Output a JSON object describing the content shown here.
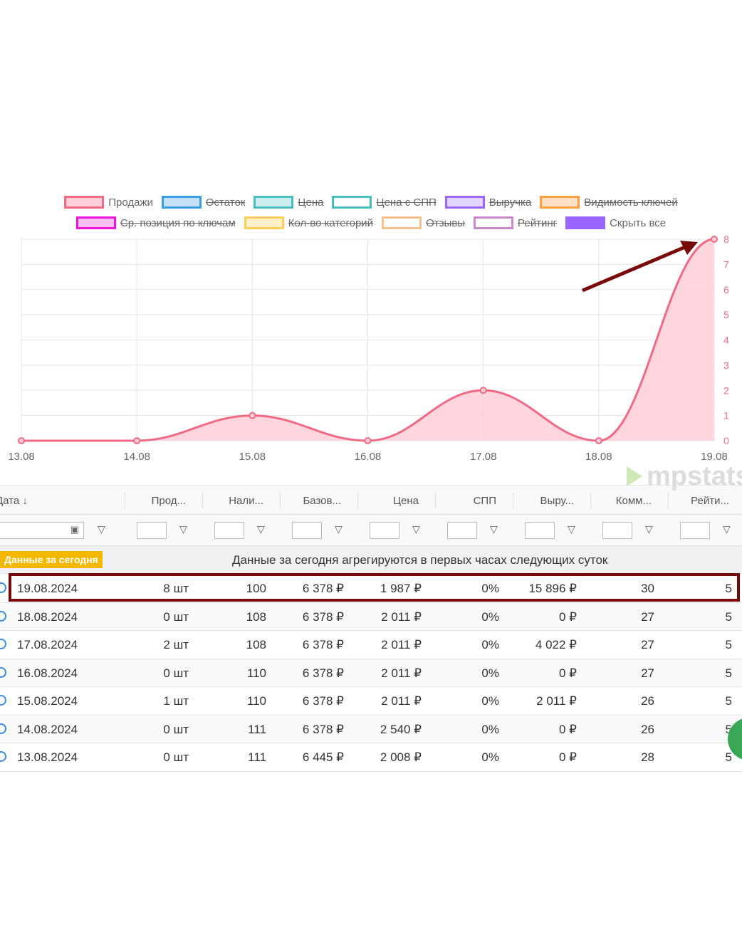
{
  "legend": [
    {
      "label": "Продажи",
      "color": "#f06a85",
      "fill": "#ffd0da",
      "active": true
    },
    {
      "label": "Остаток",
      "color": "#3a9ee6",
      "fill": "#c5e1f8",
      "active": false
    },
    {
      "label": "Цена",
      "color": "#4bbfbf",
      "fill": "#cdeeee",
      "active": false
    },
    {
      "label": "Цена с СПП",
      "color": "#4bbfbf",
      "fill": "#ffffff",
      "active": false
    },
    {
      "label": "Выручка",
      "color": "#9966ff",
      "fill": "#e1d5ff",
      "active": false
    },
    {
      "label": "Видимость ключей",
      "color": "#ff9f40",
      "fill": "#ffe0c4",
      "active": false
    },
    {
      "label": "Ср. позиция по ключам",
      "color": "#ee11dd",
      "fill": "#fcc0f5",
      "active": false
    },
    {
      "label": "Кол-во категорий",
      "color": "#ffcd56",
      "fill": "#fff0cc",
      "active": false
    },
    {
      "label": "Отзывы",
      "color": "#f8c08a",
      "fill": "#ffffff",
      "active": false
    },
    {
      "label": "Рейтинг",
      "color": "#cc88cc",
      "fill": "#ffffff",
      "active": false
    },
    {
      "label": "Скрыть все",
      "color": "#9966ff",
      "fill": "#9966ff",
      "active": true
    }
  ],
  "chart_data": {
    "type": "area",
    "x": [
      "13.08",
      "14.08",
      "15.08",
      "16.08",
      "17.08",
      "18.08",
      "19.08"
    ],
    "series": [
      {
        "name": "Продажи",
        "values": [
          0,
          0,
          1,
          0,
          2,
          0,
          8
        ]
      }
    ],
    "ylim": [
      0,
      8
    ],
    "yticks": [
      "0",
      "1",
      "2",
      "3",
      "4",
      "5",
      "6",
      "7",
      "8"
    ],
    "grid": true,
    "color": "#f06a85"
  },
  "watermark": "mpstats",
  "table": {
    "headers": [
      "Дата ↓",
      "Прод...",
      "Нали...",
      "Базов...",
      "Цена",
      "СПП",
      "Выру...",
      "Комм...",
      "Рейти..."
    ],
    "today_badge": "Данные за сегодня",
    "today_note": "Данные за сегодня агрегируются в первых часах следующих суток",
    "rows": [
      [
        "19.08.2024",
        "8 шт",
        "100",
        "6 378 ₽",
        "1 987 ₽",
        "0%",
        "15 896 ₽",
        "30",
        "5"
      ],
      [
        "18.08.2024",
        "0 шт",
        "108",
        "6 378 ₽",
        "2 011 ₽",
        "0%",
        "0 ₽",
        "27",
        "5"
      ],
      [
        "17.08.2024",
        "2 шт",
        "108",
        "6 378 ₽",
        "2 011 ₽",
        "0%",
        "4 022 ₽",
        "27",
        "5"
      ],
      [
        "16.08.2024",
        "0 шт",
        "110",
        "6 378 ₽",
        "2 011 ₽",
        "0%",
        "0 ₽",
        "27",
        "5"
      ],
      [
        "15.08.2024",
        "1 шт",
        "110",
        "6 378 ₽",
        "2 011 ₽",
        "0%",
        "2 011 ₽",
        "26",
        "5"
      ],
      [
        "14.08.2024",
        "0 шт",
        "111",
        "6 378 ₽",
        "2 540 ₽",
        "0%",
        "0 ₽",
        "26",
        "5"
      ],
      [
        "13.08.2024",
        "0 шт",
        "111",
        "6 445 ₽",
        "2 008 ₽",
        "0%",
        "0 ₽",
        "28",
        "5"
      ]
    ]
  }
}
